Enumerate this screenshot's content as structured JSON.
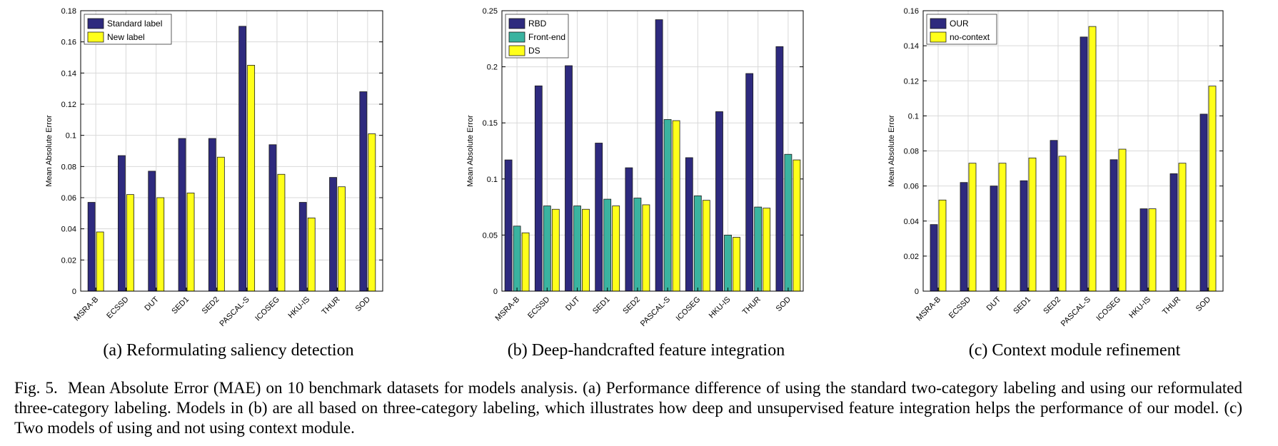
{
  "figure_caption": {
    "label": "Fig. 5.",
    "text": "Mean Absolute Error (MAE) on 10 benchmark datasets for models analysis. (a) Performance difference of using the standard two-category labeling and using our reformulated three-category labeling. Models in (b) are all based on three-category labeling, which illustrates how deep and unsupervised feature integration helps the performance of our model. (c) Two models of using and not using context module."
  },
  "colors": {
    "navy": "#2e2a7e",
    "teal": "#3ab3a0",
    "yellow": "#ffff1a",
    "grid": "#d9d9d9"
  },
  "chart_data": [
    {
      "type": "bar",
      "caption": "(a) Reformulating saliency detection",
      "ylabel": "Mean Absolute Error",
      "xlabel": "",
      "ylim": [
        0,
        0.18
      ],
      "yticks": [
        "0",
        "0.02",
        "0.04",
        "0.06",
        "0.08",
        "0.1",
        "0.12",
        "0.14",
        "0.16",
        "0.18"
      ],
      "grid": true,
      "legend_position": "top-left",
      "categories": [
        "MSRA-B",
        "ECSSD",
        "DUT",
        "SED1",
        "SED2",
        "PASCAL-S",
        "ICOSEG",
        "HKU-IS",
        "THUR",
        "SOD"
      ],
      "series": [
        {
          "name": "Standard label",
          "color": "#2e2a7e",
          "values": [
            0.057,
            0.087,
            0.077,
            0.098,
            0.098,
            0.17,
            0.094,
            0.057,
            0.073,
            0.128
          ]
        },
        {
          "name": "New label",
          "color": "#ffff1a",
          "values": [
            0.038,
            0.062,
            0.06,
            0.063,
            0.086,
            0.145,
            0.075,
            0.047,
            0.067,
            0.101
          ]
        }
      ]
    },
    {
      "type": "bar",
      "caption": "(b) Deep-handcrafted feature integration",
      "ylabel": "Mean Absolute Error",
      "xlabel": "",
      "ylim": [
        0,
        0.25
      ],
      "yticks": [
        "0",
        "0.05",
        "0.1",
        "0.15",
        "0.2",
        "0.25"
      ],
      "grid": true,
      "legend_position": "top-left",
      "categories": [
        "MSRA-B",
        "ECSSD",
        "DUT",
        "SED1",
        "SED2",
        "PASCAL-S",
        "ICOSEG",
        "HKU-IS",
        "THUR",
        "SOD"
      ],
      "series": [
        {
          "name": "RBD",
          "color": "#2e2a7e",
          "values": [
            0.117,
            0.183,
            0.201,
            0.132,
            0.11,
            0.242,
            0.119,
            0.16,
            0.194,
            0.218
          ]
        },
        {
          "name": "Front-end",
          "color": "#3ab3a0",
          "values": [
            0.058,
            0.076,
            0.076,
            0.082,
            0.083,
            0.153,
            0.085,
            0.05,
            0.075,
            0.122
          ]
        },
        {
          "name": "DS",
          "color": "#ffff1a",
          "values": [
            0.052,
            0.073,
            0.073,
            0.076,
            0.077,
            0.152,
            0.081,
            0.048,
            0.074,
            0.117
          ]
        }
      ]
    },
    {
      "type": "bar",
      "caption": "(c) Context module refinement",
      "ylabel": "Mean Absolute Error",
      "xlabel": "",
      "ylim": [
        0,
        0.16
      ],
      "yticks": [
        "0",
        "0.02",
        "0.04",
        "0.06",
        "0.08",
        "0.1",
        "0.12",
        "0.14",
        "0.16"
      ],
      "grid": true,
      "legend_position": "top-left",
      "categories": [
        "MSRA-B",
        "ECSSD",
        "DUT",
        "SED1",
        "SED2",
        "PASCAL-S",
        "ICOSEG",
        "HKU-IS",
        "THUR",
        "SOD"
      ],
      "series": [
        {
          "name": "OUR",
          "color": "#2e2a7e",
          "values": [
            0.038,
            0.062,
            0.06,
            0.063,
            0.086,
            0.145,
            0.075,
            0.047,
            0.067,
            0.101
          ]
        },
        {
          "name": "no-context",
          "color": "#ffff1a",
          "values": [
            0.052,
            0.073,
            0.073,
            0.076,
            0.077,
            0.151,
            0.081,
            0.047,
            0.073,
            0.117
          ]
        }
      ]
    }
  ]
}
